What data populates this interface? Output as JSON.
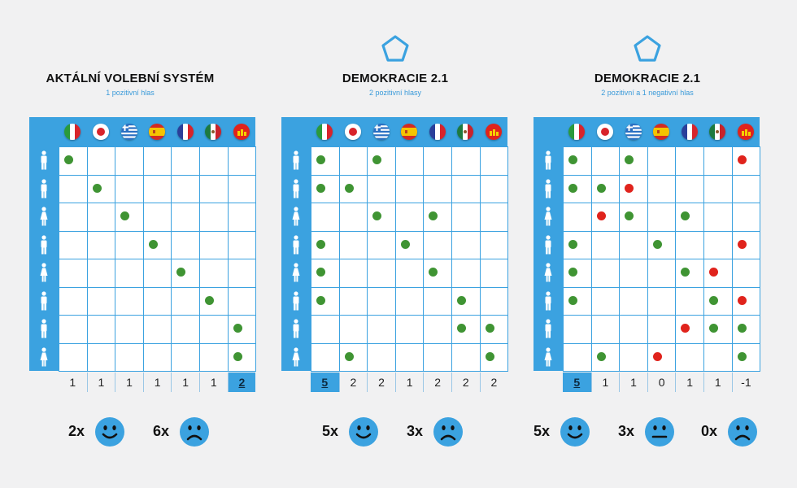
{
  "colors": {
    "accent": "#3ba2e0",
    "vote_positive": "#3f9433",
    "vote_negative": "#e0231c",
    "background": "#f1f1f2"
  },
  "flags": [
    "italy-flag-icon",
    "japan-flag-icon",
    "greece-flag-icon",
    "spain-flag-icon",
    "france-flag-icon",
    "mexico-flag-icon",
    "cartoon-flag-icon"
  ],
  "voters": [
    "male",
    "male",
    "female",
    "male",
    "female",
    "male",
    "male",
    "female"
  ],
  "panels": [
    {
      "title": "AKTÁLNÍ VOLEBNÍ SYSTÉM",
      "subtitle": "1 pozitivní hlas",
      "logo": false,
      "votes": [
        [
          "g",
          0,
          0,
          0,
          0,
          0,
          0
        ],
        [
          0,
          "g",
          0,
          0,
          0,
          0,
          0
        ],
        [
          0,
          0,
          "g",
          0,
          0,
          0,
          0
        ],
        [
          0,
          0,
          0,
          "g",
          0,
          0,
          0
        ],
        [
          0,
          0,
          0,
          0,
          "g",
          0,
          0
        ],
        [
          0,
          0,
          0,
          0,
          0,
          "g",
          0
        ],
        [
          0,
          0,
          0,
          0,
          0,
          0,
          "g"
        ],
        [
          0,
          0,
          0,
          0,
          0,
          0,
          "g"
        ]
      ],
      "totals": [
        "1",
        "1",
        "1",
        "1",
        "1",
        "1",
        "2"
      ],
      "winner_index": 6,
      "results": [
        {
          "count": "2x",
          "face": "happy-face-icon"
        },
        {
          "count": "6x",
          "face": "sad-face-icon"
        }
      ]
    },
    {
      "title": "DEMOKRACIE 2.1",
      "subtitle": "2 pozitivní hlasy",
      "logo": true,
      "votes": [
        [
          "g",
          0,
          "g",
          0,
          0,
          0,
          0
        ],
        [
          "g",
          "g",
          0,
          0,
          0,
          0,
          0
        ],
        [
          0,
          0,
          "g",
          0,
          "g",
          0,
          0
        ],
        [
          "g",
          0,
          0,
          "g",
          0,
          0,
          0
        ],
        [
          "g",
          0,
          0,
          0,
          "g",
          0,
          0
        ],
        [
          "g",
          0,
          0,
          0,
          0,
          "g",
          0
        ],
        [
          0,
          0,
          0,
          0,
          0,
          "g",
          "g"
        ],
        [
          0,
          "g",
          0,
          0,
          0,
          0,
          "g"
        ]
      ],
      "totals": [
        "5",
        "2",
        "2",
        "1",
        "2",
        "2",
        "2"
      ],
      "winner_index": 0,
      "results": [
        {
          "count": "5x",
          "face": "happy-face-icon"
        },
        {
          "count": "3x",
          "face": "sad-face-icon"
        }
      ]
    },
    {
      "title": "DEMOKRACIE 2.1",
      "subtitle": "2 pozitivní a 1 negativní hlas",
      "logo": true,
      "votes": [
        [
          "g",
          0,
          "g",
          0,
          0,
          0,
          "r"
        ],
        [
          "g",
          "g",
          "r",
          0,
          0,
          0,
          0
        ],
        [
          0,
          "r",
          "g",
          0,
          "g",
          0,
          0
        ],
        [
          "g",
          0,
          0,
          "g",
          0,
          0,
          "r"
        ],
        [
          "g",
          0,
          0,
          0,
          "g",
          "r",
          0
        ],
        [
          "g",
          0,
          0,
          0,
          0,
          "g",
          "r"
        ],
        [
          0,
          0,
          0,
          0,
          "r",
          "g",
          "g"
        ],
        [
          0,
          "g",
          0,
          "r",
          0,
          0,
          "g"
        ]
      ],
      "totals": [
        "5",
        "1",
        "1",
        "0",
        "1",
        "1",
        "-1"
      ],
      "winner_index": 0,
      "results": [
        {
          "count": "5x",
          "face": "happy-face-icon"
        },
        {
          "count": "3x",
          "face": "neutral-face-icon"
        },
        {
          "count": "0x",
          "face": "sad-face-icon"
        }
      ]
    }
  ]
}
